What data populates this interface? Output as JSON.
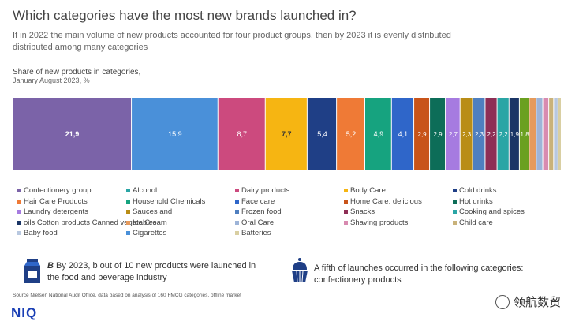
{
  "header": {
    "title": "Which categories have the most new brands launched in?",
    "subtitle": "If in 2022 the main volume of new products accounted for four product groups, then by 2023 it is evenly distributed distributed among many categories"
  },
  "chart_data": {
    "type": "bar",
    "stacked": true,
    "title": "Share of new products in categories,",
    "subtitle": "January August 2023, %",
    "segments": [
      {
        "value": 21.9,
        "label": "21,9",
        "color": "#7b63a8"
      },
      {
        "value": 15.9,
        "label": "15,9",
        "color": "#4a90d9"
      },
      {
        "value": 8.7,
        "label": "8,7",
        "color": "#cc4a7e"
      },
      {
        "value": 7.7,
        "label": "7,7",
        "color": "#f6b512"
      },
      {
        "value": 5.4,
        "label": "5,4",
        "color": "#1f3f86"
      },
      {
        "value": 5.2,
        "label": "5,2",
        "color": "#ef7a36"
      },
      {
        "value": 4.9,
        "label": "4,9",
        "color": "#16a37f"
      },
      {
        "value": 4.1,
        "label": "4,1",
        "color": "#2f66c9"
      },
      {
        "value": 2.9,
        "label": "2,9",
        "color": "#c8541a"
      },
      {
        "value": 2.9,
        "label": "2,9",
        "color": "#0d6d58"
      },
      {
        "value": 2.7,
        "label": "2,7",
        "color": "#a67be0"
      },
      {
        "value": 2.3,
        "label": "2,3",
        "color": "#b98d16"
      },
      {
        "value": 2.3,
        "label": "2,3",
        "color": "#4f7fbf"
      },
      {
        "value": 2.2,
        "label": "2,2",
        "color": "#8e2e55"
      },
      {
        "value": 2.2,
        "label": "2,2",
        "color": "#2aa5a5"
      },
      {
        "value": 1.9,
        "label": "1,9",
        "color": "#1a3566"
      },
      {
        "value": 1.8,
        "label": "1,8",
        "color": "#6aa020"
      },
      {
        "value": 1.3,
        "label": "",
        "color": "#e59a5c"
      },
      {
        "value": 1.2,
        "label": "",
        "color": "#9db4d8"
      },
      {
        "value": 1.1,
        "label": "",
        "color": "#d88ab0"
      },
      {
        "value": 0.9,
        "label": "",
        "color": "#c9b27a"
      },
      {
        "value": 0.8,
        "label": "",
        "color": "#b8c8e0"
      },
      {
        "value": 0.6,
        "label": "",
        "color": "#d9cfa2"
      }
    ],
    "legend": [
      {
        "label": "Confectionery group",
        "color": "#7b63a8"
      },
      {
        "label": "Alcohol",
        "color": "#2aa5a5"
      },
      {
        "label": "Dairy products",
        "color": "#cc4a7e"
      },
      {
        "label": "Body Care",
        "color": "#f6b512"
      },
      {
        "label": "Cold drinks",
        "color": "#1f3f86"
      },
      {
        "label": "Hair Care Products",
        "color": "#ef7a36"
      },
      {
        "label": "Household Chemicals",
        "color": "#16a37f"
      },
      {
        "label": "Face care",
        "color": "#2f66c9"
      },
      {
        "label": "Home Care. delicious",
        "color": "#c8541a"
      },
      {
        "label": "Hot drinks",
        "color": "#0d6d58"
      },
      {
        "label": "Laundry detergents",
        "color": "#a67be0"
      },
      {
        "label": "Sauces and",
        "color": "#b98d16"
      },
      {
        "label": "Frozen food",
        "color": "#4f7fbf"
      },
      {
        "label": "Snacks",
        "color": "#8e2e55"
      },
      {
        "label": "Cooking and spices",
        "color": "#2aa5a5"
      },
      {
        "label": "oils Cotton products Canned vegetables",
        "color": "#1a3566"
      },
      {
        "label": "Ice Cream",
        "color": "#e59a5c"
      },
      {
        "label": "Oral Care",
        "color": "#9db4d8"
      },
      {
        "label": "Shaving products",
        "color": "#d88ab0"
      },
      {
        "label": "Child care",
        "color": "#c9b27a"
      },
      {
        "label": "Baby food",
        "color": "#b8c8e0"
      },
      {
        "label": "Cigarettes",
        "color": "#4a90d9"
      },
      {
        "label": "Batteries",
        "color": "#d9cfa2"
      }
    ]
  },
  "notes": {
    "left": {
      "lead": "B",
      "text": " By 2023, b out of 10 new products were launched in the food and beverage industry"
    },
    "right": {
      "text": "A fifth of launches occurred in the following categories: confectionery products"
    }
  },
  "footer": {
    "source": "Source Nielsen National Audit Office, data based on analysis of 160 FMCG categories, offline market",
    "logo": "NIQ",
    "watermark": "领航数贸"
  }
}
